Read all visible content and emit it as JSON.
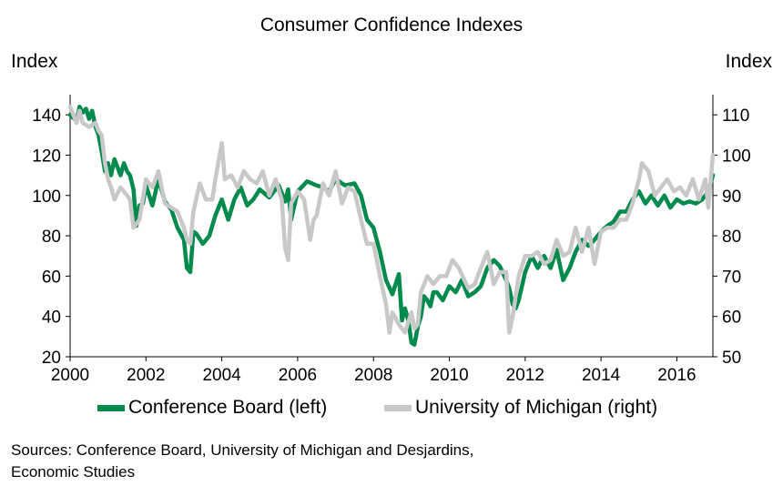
{
  "chart_data": {
    "type": "line",
    "title": "Consumer Confidence Indexes",
    "ylabel_left": "Index",
    "ylabel_right": "Index",
    "xlabel": "",
    "x_range": [
      2000,
      2016.95
    ],
    "ylim_left": [
      20,
      150
    ],
    "ylim_right": [
      50,
      115
    ],
    "xticks": [
      "2000",
      "2002",
      "2004",
      "2006",
      "2008",
      "2010",
      "2012",
      "2014",
      "2016"
    ],
    "yticks_left": [
      "20",
      "40",
      "60",
      "80",
      "100",
      "120",
      "140"
    ],
    "yticks_right": [
      "50",
      "60",
      "70",
      "80",
      "90",
      "100",
      "110"
    ],
    "series": [
      {
        "name": "Conference Board (left)",
        "axis": "left",
        "color": "#008a4b",
        "x": [
          2000.0,
          2000.17,
          2000.25,
          2000.33,
          2000.42,
          2000.5,
          2000.58,
          2000.67,
          2000.75,
          2000.83,
          2000.92,
          2001.0,
          2001.08,
          2001.17,
          2001.25,
          2001.33,
          2001.42,
          2001.5,
          2001.58,
          2001.67,
          2001.75,
          2001.83,
          2001.92,
          2002.0,
          2002.17,
          2002.33,
          2002.5,
          2002.67,
          2002.83,
          2003.0,
          2003.08,
          2003.17,
          2003.25,
          2003.33,
          2003.5,
          2003.67,
          2003.83,
          2004.0,
          2004.17,
          2004.33,
          2004.5,
          2004.67,
          2004.83,
          2005.0,
          2005.25,
          2005.5,
          2005.67,
          2005.75,
          2005.83,
          2006.0,
          2006.25,
          2006.5,
          2006.67,
          2006.83,
          2007.0,
          2007.25,
          2007.5,
          2007.67,
          2007.83,
          2008.0,
          2008.17,
          2008.33,
          2008.5,
          2008.67,
          2008.75,
          2008.83,
          2008.92,
          2009.0,
          2009.08,
          2009.17,
          2009.25,
          2009.33,
          2009.42,
          2009.5,
          2009.58,
          2009.67,
          2009.83,
          2010.0,
          2010.17,
          2010.33,
          2010.5,
          2010.67,
          2010.83,
          2011.0,
          2011.17,
          2011.33,
          2011.5,
          2011.58,
          2011.67,
          2011.75,
          2011.83,
          2012.0,
          2012.17,
          2012.33,
          2012.5,
          2012.67,
          2012.83,
          2013.0,
          2013.17,
          2013.33,
          2013.5,
          2013.67,
          2013.83,
          2014.0,
          2014.17,
          2014.33,
          2014.5,
          2014.67,
          2014.83,
          2015.0,
          2015.17,
          2015.33,
          2015.5,
          2015.67,
          2015.83,
          2016.0,
          2016.17,
          2016.33,
          2016.5,
          2016.67,
          2016.83,
          2016.95
        ],
        "values": [
          140,
          137,
          144,
          141,
          143,
          138,
          142,
          134,
          130,
          122,
          112,
          116,
          110,
          118,
          114,
          110,
          116,
          112,
          110,
          103,
          85,
          95,
          96,
          105,
          95,
          108,
          97,
          93,
          84,
          78,
          64,
          62,
          82,
          81,
          76,
          80,
          90,
          98,
          88,
          98,
          104,
          95,
          98,
          103,
          99,
          105,
          97,
          103,
          88,
          102,
          107,
          105,
          104,
          102,
          108,
          105,
          106,
          100,
          88,
          84,
          72,
          58,
          51,
          61,
          38,
          44,
          38,
          27,
          26,
          35,
          40,
          50,
          48,
          45,
          52,
          52,
          48,
          55,
          52,
          58,
          50,
          52,
          55,
          64,
          68,
          65,
          58,
          54,
          46,
          44,
          48,
          62,
          70,
          64,
          70,
          64,
          73,
          58,
          64,
          72,
          78,
          75,
          78,
          82,
          85,
          87,
          92,
          92,
          98,
          102,
          96,
          100,
          95,
          100,
          94,
          98,
          96,
          97,
          96,
          98,
          102,
          110
        ]
      },
      {
        "name": "University of Michigan (right)",
        "axis": "right",
        "color": "#c8c8c8",
        "x": [
          2000.0,
          2000.17,
          2000.25,
          2000.33,
          2000.5,
          2000.67,
          2000.75,
          2000.83,
          2000.92,
          2001.0,
          2001.08,
          2001.17,
          2001.33,
          2001.42,
          2001.58,
          2001.67,
          2001.75,
          2001.83,
          2002.0,
          2002.17,
          2002.33,
          2002.5,
          2002.67,
          2002.83,
          2003.0,
          2003.08,
          2003.17,
          2003.25,
          2003.42,
          2003.58,
          2003.75,
          2003.83,
          2004.0,
          2004.08,
          2004.25,
          2004.42,
          2004.58,
          2004.75,
          2004.92,
          2005.08,
          2005.25,
          2005.42,
          2005.58,
          2005.67,
          2005.75,
          2005.83,
          2006.0,
          2006.17,
          2006.33,
          2006.42,
          2006.5,
          2006.67,
          2006.83,
          2007.0,
          2007.17,
          2007.33,
          2007.5,
          2007.67,
          2007.83,
          2008.0,
          2008.17,
          2008.33,
          2008.42,
          2008.5,
          2008.67,
          2008.83,
          2009.0,
          2009.08,
          2009.17,
          2009.25,
          2009.42,
          2009.58,
          2009.75,
          2009.92,
          2010.08,
          2010.25,
          2010.5,
          2010.67,
          2010.83,
          2011.0,
          2011.17,
          2011.33,
          2011.5,
          2011.58,
          2011.67,
          2011.83,
          2012.0,
          2012.17,
          2012.33,
          2012.5,
          2012.67,
          2012.83,
          2013.0,
          2013.17,
          2013.33,
          2013.5,
          2013.67,
          2013.83,
          2014.0,
          2014.17,
          2014.33,
          2014.5,
          2014.67,
          2014.83,
          2015.0,
          2015.08,
          2015.25,
          2015.42,
          2015.58,
          2015.75,
          2015.92,
          2016.08,
          2016.25,
          2016.42,
          2016.58,
          2016.75,
          2016.83,
          2016.95
        ],
        "values": [
          112,
          108,
          111,
          108,
          107,
          108,
          106,
          105,
          98,
          94,
          92,
          89,
          92,
          91,
          89,
          82,
          83,
          84,
          94,
          92,
          96,
          88,
          87,
          86,
          82,
          79,
          78,
          86,
          93,
          89,
          89,
          94,
          103,
          94,
          95,
          92,
          96,
          94,
          93,
          96,
          90,
          94,
          89,
          77,
          74,
          88,
          91,
          89,
          79,
          84,
          85,
          93,
          90,
          96,
          88,
          92,
          91,
          84,
          78,
          78,
          70,
          63,
          56,
          61,
          58,
          56,
          61,
          57,
          58,
          66,
          70,
          68,
          70,
          70,
          74,
          72,
          67,
          68,
          72,
          76,
          68,
          71,
          71,
          56,
          60,
          70,
          75,
          75,
          76,
          73,
          74,
          79,
          75,
          76,
          82,
          76,
          82,
          73,
          81,
          82,
          82,
          84,
          84,
          88,
          94,
          98,
          96,
          90,
          92,
          94,
          91,
          92,
          90,
          94,
          89,
          94,
          87,
          100
        ]
      }
    ],
    "source_line1": "Sources: Conference Board, University of Michigan and Desjardins,",
    "source_line2": "Economic Studies"
  }
}
